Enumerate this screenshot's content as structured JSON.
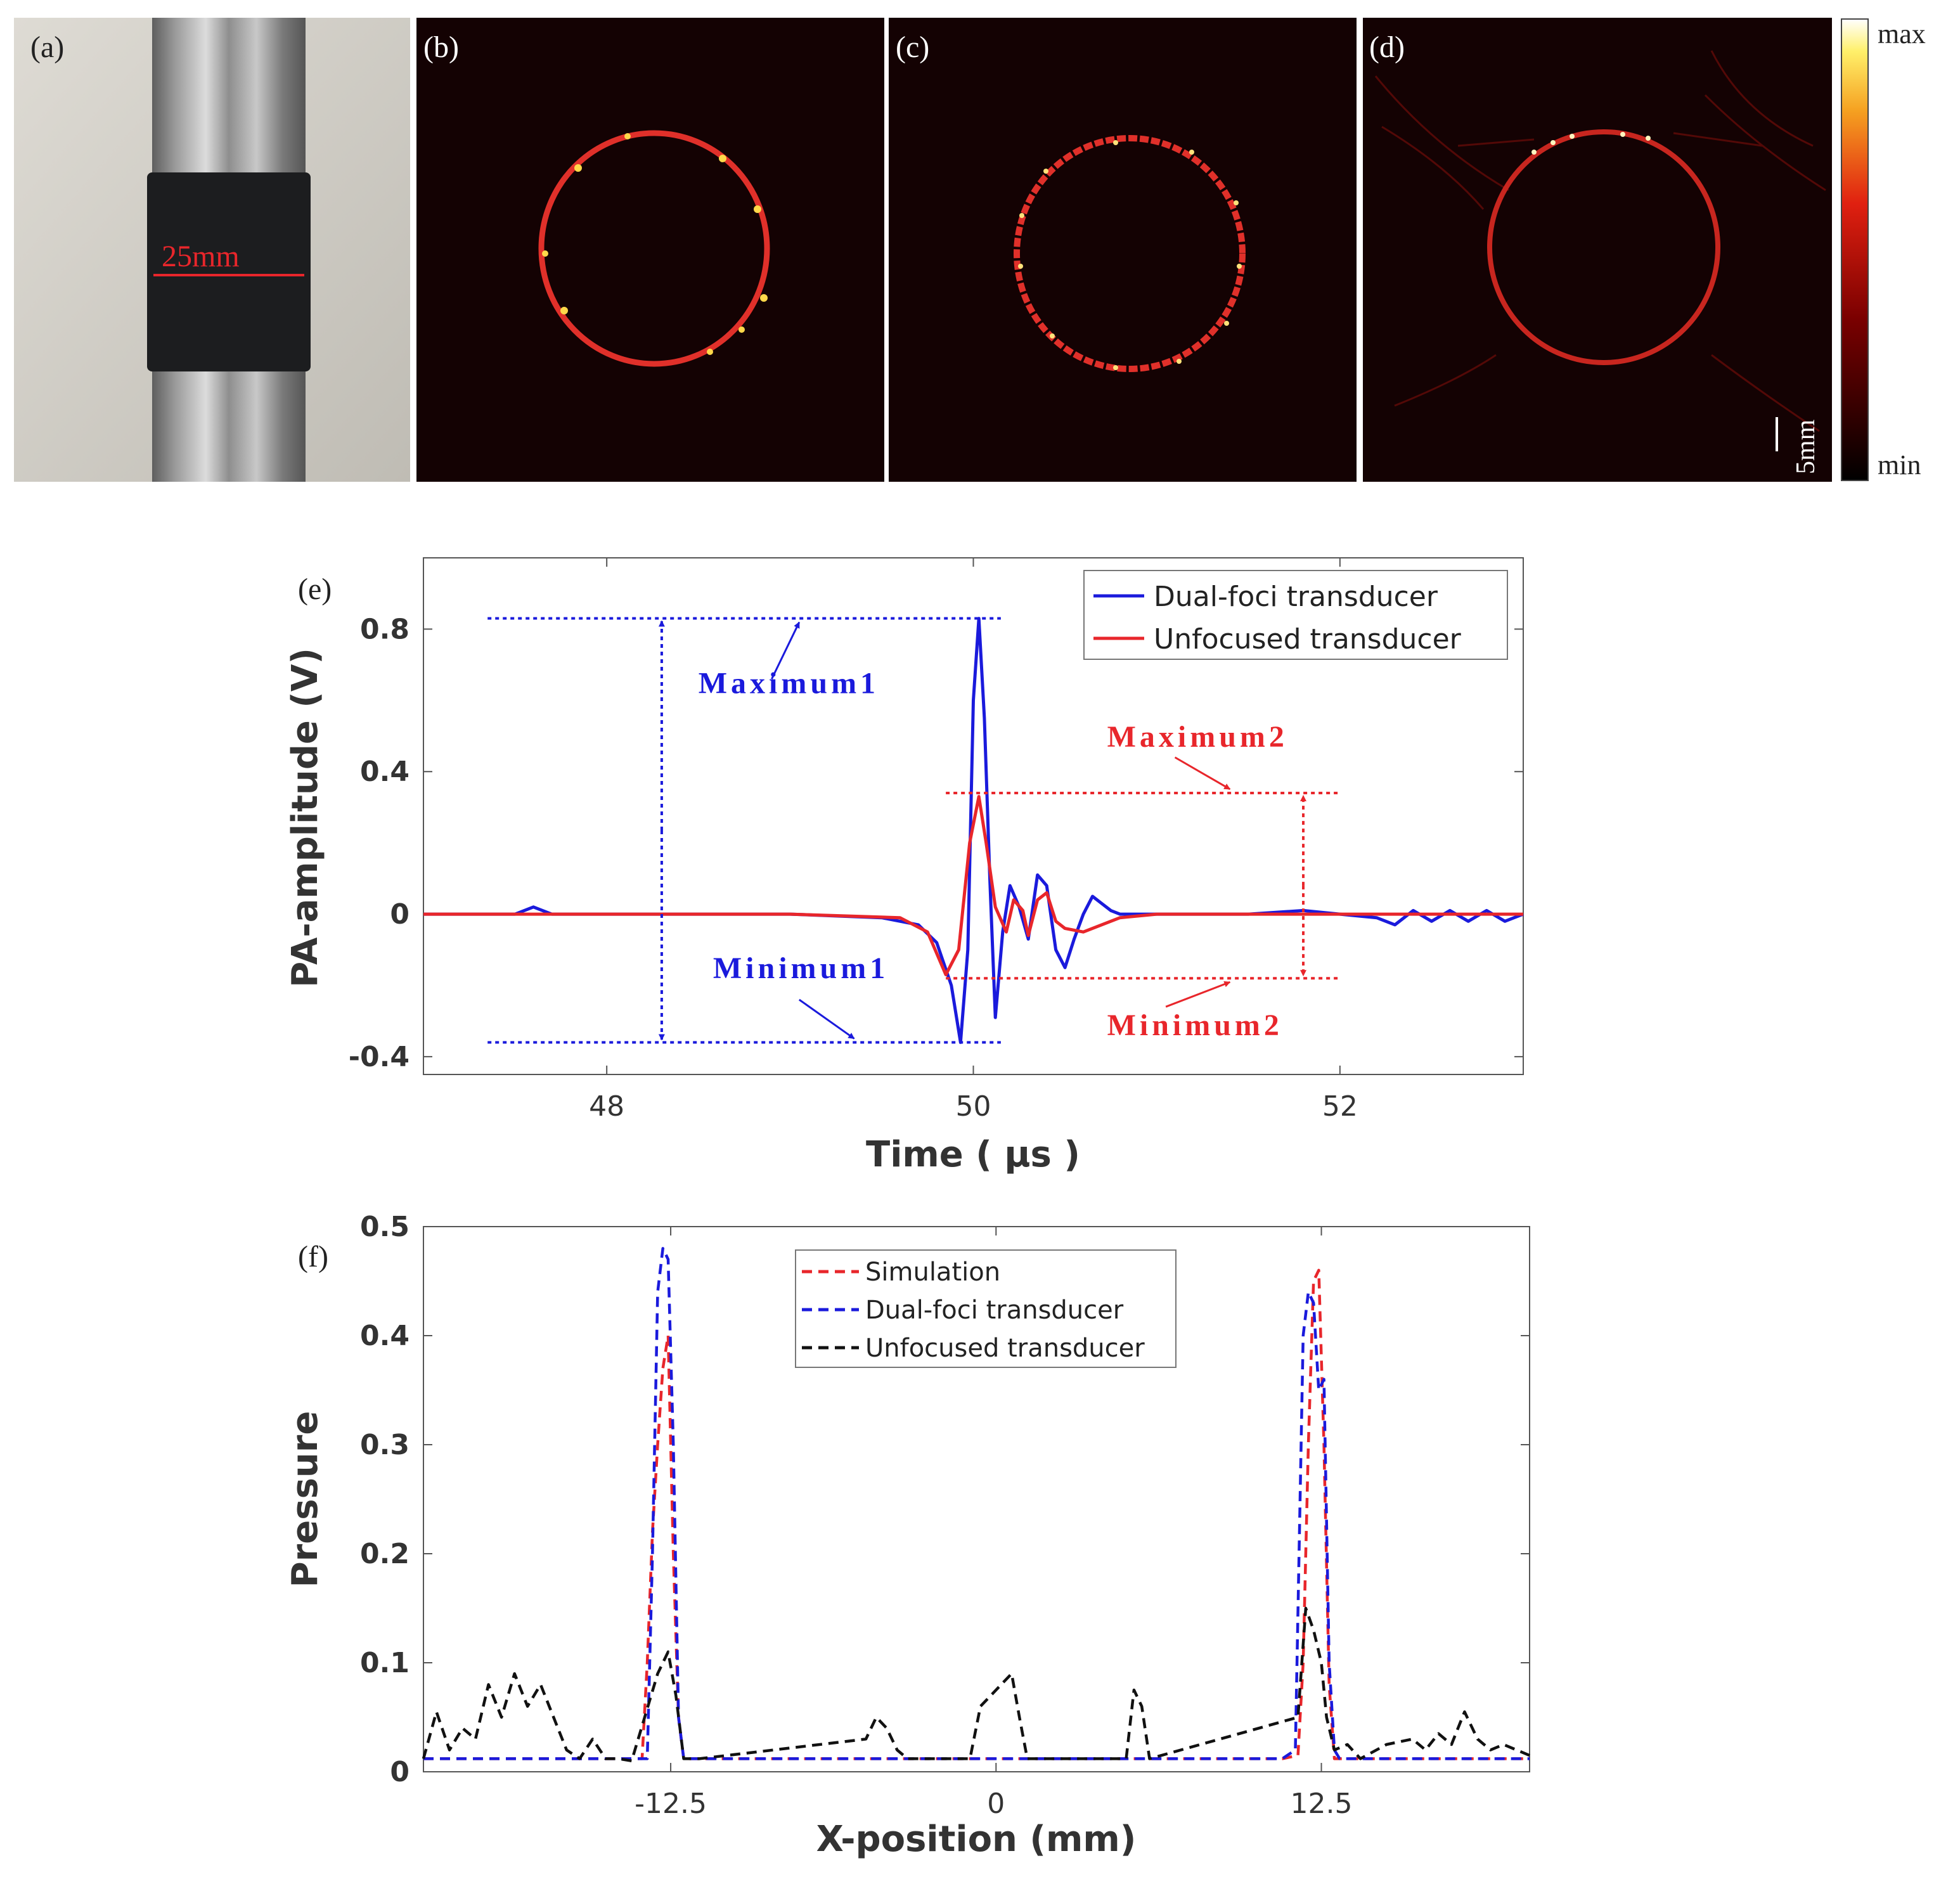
{
  "colors": {
    "blue": "#1a1adc",
    "red": "#e8262b",
    "black": "#111111",
    "image_bg": "#140203",
    "ring": "#e0302a"
  },
  "panels": {
    "a": {
      "label": "(a)",
      "scale_text": "25mm"
    },
    "b": {
      "label": "(b)"
    },
    "c": {
      "label": "(c)"
    },
    "d": {
      "label": "(d)",
      "scale_bar_text": "5mm"
    },
    "colorbar": {
      "max_label": "max",
      "min_label": "min"
    }
  },
  "chart_data": [
    {
      "panel_label": "(e)",
      "type": "line",
      "xlabel": "Time ( μs )",
      "ylabel": "PA-amplitude (V)",
      "xlim": [
        47.0,
        53.0
      ],
      "ylim": [
        -0.45,
        1.0
      ],
      "xticks": [
        48,
        50,
        52
      ],
      "yticks": [
        -0.4,
        0,
        0.4,
        0.8
      ],
      "ytick_labels": [
        "-0.4",
        "0",
        "0.4",
        "0.8"
      ],
      "legend_position": "top-right",
      "series": [
        {
          "name": "Dual-foci transducer",
          "color": "#1a1adc",
          "x": [
            47.0,
            47.5,
            47.6,
            47.7,
            48.0,
            49.0,
            49.5,
            49.7,
            49.8,
            49.88,
            49.93,
            49.97,
            50.0,
            50.03,
            50.06,
            50.09,
            50.12,
            50.16,
            50.2,
            50.25,
            50.3,
            50.35,
            50.4,
            50.45,
            50.5,
            50.55,
            50.6,
            50.65,
            50.7,
            50.75,
            50.8,
            50.9,
            51.0,
            51.5,
            51.8,
            52.0,
            52.2,
            52.3,
            52.4,
            52.5,
            52.6,
            52.7,
            52.8,
            52.9,
            53.0
          ],
          "y": [
            0,
            0,
            0.02,
            0,
            0,
            0,
            -0.01,
            -0.03,
            -0.08,
            -0.2,
            -0.36,
            -0.1,
            0.6,
            0.83,
            0.55,
            0.1,
            -0.29,
            -0.05,
            0.08,
            0.02,
            -0.07,
            0.11,
            0.08,
            -0.1,
            -0.15,
            -0.07,
            0,
            0.05,
            0.03,
            0.01,
            0,
            0,
            0,
            0,
            0.01,
            0,
            -0.01,
            -0.03,
            0.01,
            -0.02,
            0.01,
            -0.02,
            0.01,
            -0.02,
            0
          ]
        },
        {
          "name": "Unfocused transducer",
          "color": "#e8262b",
          "x": [
            47.0,
            48.0,
            49.0,
            49.6,
            49.75,
            49.85,
            49.92,
            49.98,
            50.03,
            50.07,
            50.12,
            50.18,
            50.22,
            50.27,
            50.3,
            50.35,
            50.4,
            50.45,
            50.5,
            50.6,
            50.7,
            50.8,
            51.0,
            52.0,
            53.0
          ],
          "y": [
            0,
            0,
            0,
            -0.01,
            -0.05,
            -0.17,
            -0.1,
            0.2,
            0.33,
            0.2,
            0.02,
            -0.05,
            0.04,
            0.01,
            -0.06,
            0.04,
            0.06,
            -0.02,
            -0.04,
            -0.05,
            -0.03,
            -0.01,
            0,
            0,
            0
          ]
        }
      ],
      "annotations": [
        {
          "text": "Maximum1",
          "color": "#1a1adc",
          "type": "max",
          "value": 0.83
        },
        {
          "text": "Minimum1",
          "color": "#1a1adc",
          "type": "min",
          "value": -0.36
        },
        {
          "text": "Maximum2",
          "color": "#e8262b",
          "type": "max",
          "value": 0.34
        },
        {
          "text": "Minimum2",
          "color": "#e8262b",
          "type": "min",
          "value": -0.18
        }
      ]
    },
    {
      "panel_label": "(f)",
      "type": "line",
      "xlabel": "X-position (mm)",
      "ylabel": "Pressure",
      "xlim": [
        -22,
        20.5
      ],
      "ylim": [
        0,
        0.5
      ],
      "xticks": [
        -12.5,
        0,
        12.5
      ],
      "xtick_labels": [
        "-12.5",
        "0",
        "12.5"
      ],
      "yticks": [
        0,
        0.1,
        0.2,
        0.3,
        0.4,
        0.5
      ],
      "ytick_labels": [
        "0",
        "0.1",
        "0.2",
        "0.3",
        "0.4",
        "0.5"
      ],
      "legend_position": "top-center",
      "series": [
        {
          "name": "Simulation",
          "color": "#e8262b",
          "dash": true,
          "x": [
            -22,
            -13.6,
            -13.4,
            -13.2,
            -13.0,
            -12.8,
            -12.6,
            -12.4,
            -12.2,
            -12.0,
            11.0,
            11.6,
            11.8,
            12.0,
            12.2,
            12.4,
            12.6,
            12.8,
            13.0,
            20.5
          ],
          "y": [
            0.012,
            0.012,
            0.1,
            0.22,
            0.3,
            0.37,
            0.4,
            0.2,
            0.05,
            0.012,
            0.012,
            0.015,
            0.1,
            0.3,
            0.45,
            0.46,
            0.3,
            0.08,
            0.012,
            0.012
          ]
        },
        {
          "name": "Dual-foci transducer",
          "color": "#1a1adc",
          "dash": true,
          "x": [
            -22,
            -13.4,
            -13.2,
            -13.0,
            -12.8,
            -12.6,
            -12.4,
            -12.2,
            -12.0,
            11.0,
            11.5,
            11.8,
            12.0,
            12.2,
            12.4,
            12.6,
            12.8,
            13.0,
            13.2,
            20.5
          ],
          "y": [
            0.012,
            0.012,
            0.2,
            0.44,
            0.48,
            0.47,
            0.3,
            0.05,
            0.012,
            0.012,
            0.02,
            0.4,
            0.44,
            0.43,
            0.35,
            0.36,
            0.1,
            0.02,
            0.012,
            0.012
          ]
        },
        {
          "name": "Unfocused transducer",
          "color": "#111111",
          "dash": true,
          "x": [
            -22,
            -21.5,
            -21,
            -20.5,
            -20,
            -19.5,
            -19,
            -18.5,
            -18,
            -17.5,
            -17,
            -16.5,
            -16,
            -15.5,
            -15,
            -14.5,
            -14,
            -13.5,
            -13,
            -12.6,
            -12.3,
            -12,
            -11.7,
            -11.4,
            -5,
            -4.6,
            -4.2,
            -3.8,
            -3.4,
            -1,
            -0.6,
            -0.2,
            0.2,
            0.6,
            0.9,
            1.2,
            5,
            5.3,
            5.6,
            5.9,
            11.6,
            11.9,
            12.2,
            12.5,
            12.7,
            13.0,
            13.5,
            14,
            15,
            16,
            16.5,
            17,
            17.5,
            18,
            18.5,
            19,
            19.5,
            20.5
          ],
          "y": [
            0.012,
            0.055,
            0.02,
            0.04,
            0.03,
            0.08,
            0.05,
            0.09,
            0.06,
            0.08,
            0.05,
            0.02,
            0.012,
            0.03,
            0.012,
            0.012,
            0.01,
            0.05,
            0.09,
            0.11,
            0.07,
            0.012,
            0.012,
            0.012,
            0.03,
            0.05,
            0.04,
            0.02,
            0.012,
            0.012,
            0.06,
            0.07,
            0.08,
            0.09,
            0.05,
            0.012,
            0.012,
            0.075,
            0.06,
            0.012,
            0.05,
            0.15,
            0.13,
            0.1,
            0.05,
            0.02,
            0.025,
            0.012,
            0.025,
            0.03,
            0.02,
            0.035,
            0.025,
            0.055,
            0.03,
            0.02,
            0.025,
            0.015
          ]
        }
      ]
    }
  ]
}
